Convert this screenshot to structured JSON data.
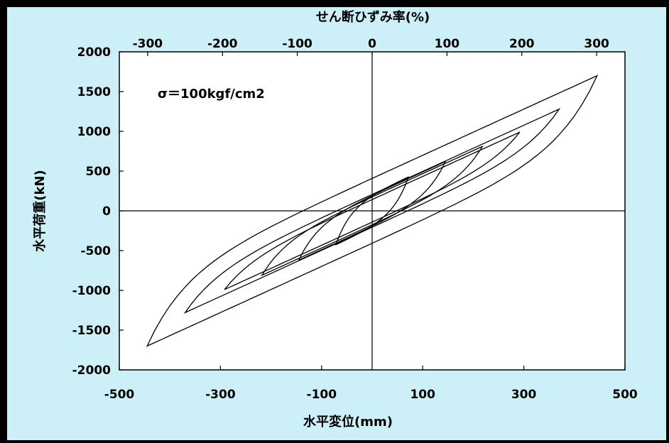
{
  "chart_data": {
    "type": "line",
    "xlabel": "水平変位(mm)",
    "ylabel": "水平荷重(kN)",
    "top_xlabel": "せん断ひずみ率(%)",
    "annotation": "σ＝100kgf/cm2",
    "xlim": [
      -500,
      500
    ],
    "ylim": [
      -2000,
      2000
    ],
    "x_ticks": [
      "-500",
      "-300",
      "-100",
      "100",
      "300",
      "500"
    ],
    "x_tick_values": [
      -500,
      -300,
      -100,
      100,
      300,
      500
    ],
    "y_ticks": [
      "2000",
      "1500",
      "1000",
      "500",
      "0",
      "-500",
      "-1000",
      "-1500",
      "-2000"
    ],
    "y_tick_values": [
      2000,
      1500,
      1000,
      500,
      0,
      -500,
      -1000,
      -1500,
      -2000
    ],
    "top_ticks": [
      "-300",
      "-200",
      "-100",
      "0",
      "100",
      "200",
      "300"
    ],
    "top_tick_values": [
      -300,
      -200,
      -100,
      0,
      100,
      200,
      300
    ],
    "top_tick_x_mm": [
      -444,
      -296,
      -148,
      0,
      148,
      296,
      444
    ],
    "grid": false,
    "line_color": "#000000",
    "series": [
      {
        "loop": 1,
        "peak_disp": 72,
        "peak_load": 430
      },
      {
        "loop": 2,
        "peak_disp": 145,
        "peak_load": 620
      },
      {
        "loop": 3,
        "peak_disp": 218,
        "peak_load": 810
      },
      {
        "loop": 4,
        "peak_disp": 292,
        "peak_load": 990
      },
      {
        "loop": 5,
        "peak_disp": 370,
        "peak_load": 1280
      },
      {
        "loop": 6,
        "peak_disp": 445,
        "peak_load": 1700
      }
    ]
  },
  "colors": {
    "background": "#cdeff8",
    "frame": "#000000",
    "plot_area": "#ffffff"
  }
}
